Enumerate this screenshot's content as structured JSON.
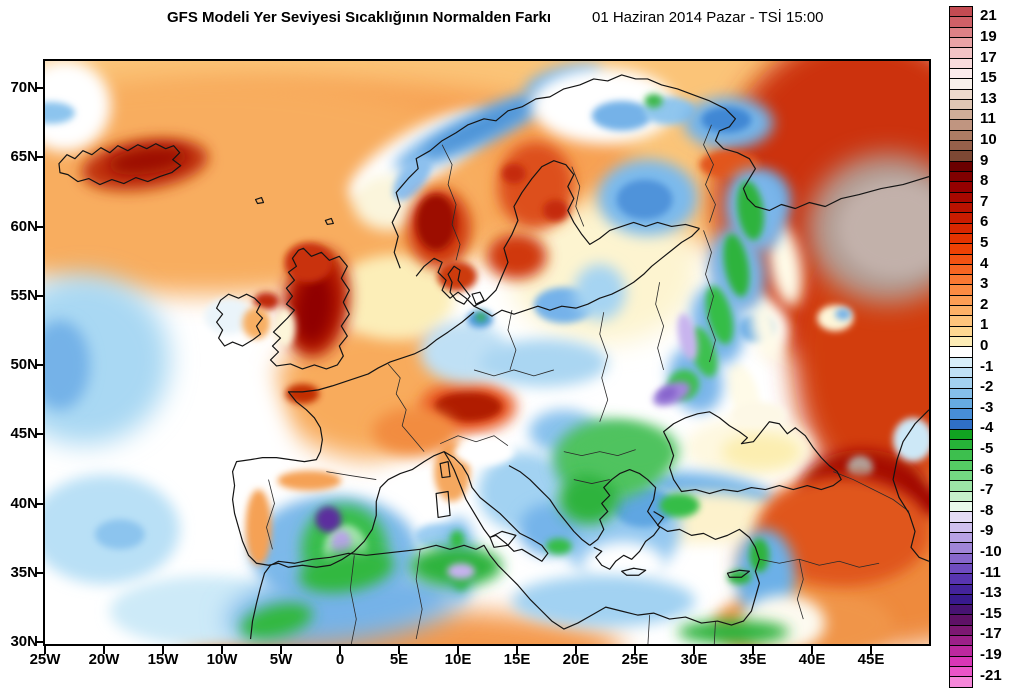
{
  "header": {
    "title": "GFS Modeli Yer Seviyesi Sıcaklığının Normalden Farkı",
    "datetime": "01 Haziran 2014 Pazar - TSİ 15:00"
  },
  "axes": {
    "lat_labels": [
      "70N",
      "65N",
      "60N",
      "55N",
      "50N",
      "45N",
      "40N",
      "35N",
      "30N"
    ],
    "lon_labels": [
      "25W",
      "20W",
      "15W",
      "10W",
      "5W",
      "0",
      "5E",
      "10E",
      "15E",
      "20E",
      "25E",
      "30E",
      "35E",
      "40E",
      "45E"
    ]
  },
  "colorbar": {
    "labels": [
      "21",
      "19",
      "17",
      "15",
      "13",
      "11",
      "10",
      "9",
      "8",
      "7",
      "6",
      "5",
      "4",
      "3",
      "2",
      "1",
      "0",
      "-1",
      "-2",
      "-3",
      "-4",
      "-5",
      "-6",
      "-7",
      "-8",
      "-9",
      "-10",
      "-11",
      "-13",
      "-15",
      "-17",
      "-19",
      "-21"
    ],
    "boundaries": [
      1,
      3,
      5,
      7,
      9,
      11,
      13,
      15,
      17,
      19,
      21,
      23,
      25,
      27,
      29,
      31,
      33,
      35,
      37,
      39,
      41,
      43,
      45,
      47,
      49,
      51,
      53,
      55,
      57,
      59,
      61,
      63,
      65
    ],
    "cells": [
      "#c34b52",
      "#cf6067",
      "#dd8186",
      "#eaa3a6",
      "#f3c3c5",
      "#f9dbdc",
      "#fcecec",
      "#f8f0ea",
      "#eddacd",
      "#dfc6b4",
      "#d0ad98",
      "#c09580",
      "#ad7c64",
      "#96604a",
      "#7d4834",
      "#6b0000",
      "#800000",
      "#950000",
      "#a80800",
      "#ba1200",
      "#ca1c00",
      "#d82700",
      "#e43300",
      "#ee4104",
      "#f35212",
      "#f76522",
      "#fa7832",
      "#fc8b42",
      "#fd9e54",
      "#fdb167",
      "#fec47c",
      "#fed792",
      "#fdecb6",
      "#ffffff",
      "#d8eef9",
      "#bfe0f5",
      "#a3d1f0",
      "#85bfea",
      "#66abe2",
      "#478ed7",
      "#2f6fc6",
      "#11a321",
      "#26b238",
      "#3dbf4e",
      "#55cb64",
      "#74d883",
      "#9ce4a6",
      "#c6f0cb",
      "#e9faec",
      "#e4dcf6",
      "#cfc0ee",
      "#b7a2e4",
      "#a085d8",
      "#8767cc",
      "#6f4cc0",
      "#5835b0",
      "#44249c",
      "#381a8e",
      "#471372",
      "#5e1166",
      "#7c1872",
      "#9c2088",
      "#bc289e",
      "#d836b6",
      "#ea55c8",
      "#f687da"
    ]
  },
  "field": {
    "blobs": [
      [
        420,
        70,
        520,
        130,
        0,
        "#fbc478"
      ],
      [
        290,
        100,
        300,
        80,
        0,
        "#f7a152"
      ],
      [
        160,
        125,
        300,
        110,
        0,
        "#f8ad5e"
      ],
      [
        330,
        330,
        100,
        70,
        0,
        "#f8ab5c"
      ],
      [
        820,
        140,
        150,
        170,
        0,
        "#cc3008"
      ],
      [
        860,
        300,
        110,
        150,
        0,
        "#d23d0e"
      ],
      [
        840,
        500,
        140,
        90,
        0,
        "#ee8a3c"
      ],
      [
        760,
        565,
        90,
        35,
        0,
        "#f0954a"
      ],
      [
        360,
        590,
        220,
        40,
        0,
        "#f49a4e"
      ],
      [
        120,
        380,
        120,
        110,
        0,
        "#ffffff"
      ],
      [
        40,
        300,
        85,
        85,
        0,
        "#a9d8f3"
      ],
      [
        15,
        305,
        30,
        45,
        0,
        "#74b2e8"
      ],
      [
        60,
        470,
        75,
        55,
        0,
        "#b9e0f6"
      ],
      [
        75,
        475,
        25,
        15,
        0,
        "#8cc4ee"
      ],
      [
        160,
        552,
        95,
        35,
        0,
        "#cdeaf8"
      ],
      [
        420,
        452,
        95,
        62,
        0,
        "#ffffff"
      ],
      [
        580,
        330,
        95,
        62,
        0,
        "#ffffff"
      ],
      [
        560,
        212,
        95,
        72,
        0,
        "#fdf4d0"
      ],
      [
        350,
        237,
        60,
        42,
        0,
        "#fceeb8"
      ],
      [
        20,
        45,
        46,
        46,
        0,
        "#ffffff"
      ],
      [
        6,
        52,
        24,
        11,
        0,
        "#8cc4ee"
      ],
      [
        100,
        104,
        64,
        25,
        -8,
        "#c03008"
      ],
      [
        103,
        100,
        40,
        13,
        -8,
        "#9c1000"
      ],
      [
        375,
        95,
        80,
        26,
        -30,
        "#ffffff"
      ],
      [
        345,
        142,
        36,
        28,
        0,
        "#fbf5dc"
      ],
      [
        430,
        70,
        88,
        17,
        -25,
        "#74b2e8"
      ],
      [
        436,
        67,
        62,
        10,
        -25,
        "#4b92d6"
      ],
      [
        520,
        20,
        40,
        14,
        -15,
        "#74b2e8"
      ],
      [
        368,
        118,
        26,
        13,
        -52,
        "#8cc0ee"
      ],
      [
        395,
        168,
        32,
        40,
        0,
        "#cf3a10"
      ],
      [
        392,
        162,
        20,
        28,
        0,
        "#9c0a00"
      ],
      [
        492,
        125,
        38,
        44,
        0,
        "#dd4f1a"
      ],
      [
        470,
        113,
        12,
        10,
        0,
        "#c52c08"
      ],
      [
        512,
        150,
        13,
        11,
        0,
        "#c52c08"
      ],
      [
        473,
        196,
        30,
        23,
        0,
        "#d03810"
      ],
      [
        413,
        216,
        20,
        15,
        0,
        "#cc3a0c"
      ],
      [
        560,
        45,
        72,
        38,
        0,
        "#ffffff"
      ],
      [
        578,
        55,
        30,
        15,
        0,
        "#74b2e8"
      ],
      [
        626,
        50,
        26,
        14,
        0,
        "#90c6ee"
      ],
      [
        610,
        40,
        9,
        7,
        0,
        "#3cb84c"
      ],
      [
        685,
        62,
        45,
        26,
        0,
        "#74b4e8"
      ],
      [
        683,
        59,
        25,
        13,
        0,
        "#4087d4"
      ],
      [
        722,
        138,
        25,
        27,
        0,
        "#6aaae4"
      ],
      [
        604,
        137,
        50,
        38,
        0,
        "#7cbaec"
      ],
      [
        601,
        139,
        28,
        20,
        0,
        "#4f93da"
      ],
      [
        686,
        104,
        30,
        14,
        0,
        "#e2561e"
      ],
      [
        520,
        245,
        30,
        18,
        0,
        "#74b2ea"
      ],
      [
        556,
        232,
        26,
        28,
        0,
        "#a6d4f2"
      ],
      [
        845,
        168,
        80,
        74,
        0,
        "#b4a098"
      ],
      [
        852,
        168,
        56,
        48,
        0,
        "#c2b1aa"
      ],
      [
        792,
        258,
        18,
        13,
        0,
        "#fef6d8"
      ],
      [
        800,
        254,
        8,
        6,
        0,
        "#74b2e8"
      ],
      [
        713,
        268,
        32,
        26,
        0,
        "#ffffff"
      ],
      [
        713,
        268,
        18,
        14,
        0,
        "#5da4e2"
      ],
      [
        742,
        205,
        16,
        42,
        -10,
        "#fffbe8"
      ],
      [
        722,
        268,
        14,
        38,
        -14,
        "#fffbe8"
      ],
      [
        700,
        332,
        14,
        30,
        -18,
        "#fffbe8"
      ],
      [
        712,
        150,
        30,
        42,
        -10,
        "#7ab6ea"
      ],
      [
        694,
        210,
        28,
        42,
        -10,
        "#7ab6ea"
      ],
      [
        674,
        265,
        26,
        40,
        -12,
        "#7ab6ea"
      ],
      [
        652,
        320,
        26,
        34,
        -20,
        "#7ab6ea"
      ],
      [
        707,
        150,
        13,
        30,
        -8,
        "#2eb33c"
      ],
      [
        693,
        205,
        12,
        32,
        -10,
        "#2eb33c"
      ],
      [
        676,
        255,
        12,
        30,
        -14,
        "#35bd47"
      ],
      [
        660,
        292,
        12,
        26,
        -18,
        "#3cc050"
      ],
      [
        640,
        325,
        16,
        15,
        -30,
        "#3cc050"
      ],
      [
        644,
        277,
        9,
        24,
        -12,
        "#c8b4ee"
      ],
      [
        628,
        334,
        20,
        10,
        -24,
        "#a286dc"
      ],
      [
        624,
        334,
        10,
        6,
        -24,
        "#8664cc"
      ],
      [
        705,
        388,
        64,
        30,
        0,
        "#fef8e0"
      ],
      [
        718,
        392,
        40,
        18,
        0,
        "#fceeb0"
      ],
      [
        715,
        355,
        28,
        13,
        0,
        "#fdf8e6"
      ],
      [
        820,
        432,
        64,
        42,
        0,
        "#a50f00"
      ],
      [
        817,
        408,
        13,
        12,
        0,
        "#b2a29a"
      ],
      [
        870,
        380,
        20,
        22,
        0,
        "#cde8f7"
      ],
      [
        660,
        432,
        70,
        18,
        6,
        "#6cb0e8"
      ],
      [
        658,
        458,
        80,
        26,
        0,
        "#fdf2cc"
      ],
      [
        850,
        438,
        60,
        18,
        10,
        "#9c0500"
      ],
      [
        800,
        472,
        88,
        55,
        0,
        "#e0561c"
      ],
      [
        722,
        516,
        30,
        46,
        0,
        "#6cb0e8"
      ],
      [
        740,
        564,
        42,
        28,
        0,
        "#fdfaf0"
      ],
      [
        575,
        468,
        62,
        54,
        0,
        "#94c8f0"
      ],
      [
        600,
        448,
        30,
        20,
        0,
        "#5ea6e2"
      ],
      [
        580,
        508,
        42,
        26,
        0,
        "#ffffff"
      ],
      [
        602,
        546,
        30,
        9,
        0,
        "#a8d6f2"
      ],
      [
        480,
        432,
        46,
        40,
        0,
        "#a2d2f2"
      ],
      [
        505,
        470,
        30,
        26,
        0,
        "#74b4ea"
      ],
      [
        515,
        487,
        13,
        8,
        0,
        "#35bd47"
      ],
      [
        408,
        412,
        18,
        30,
        0,
        "#f5a85e"
      ],
      [
        424,
        347,
        48,
        26,
        0,
        "#e85824"
      ],
      [
        424,
        347,
        34,
        15,
        0,
        "#b01a00"
      ],
      [
        440,
        392,
        30,
        14,
        0,
        "#ffffff"
      ],
      [
        272,
        243,
        33,
        55,
        8,
        "#b81e00"
      ],
      [
        270,
        248,
        19,
        36,
        8,
        "#900300"
      ],
      [
        264,
        202,
        24,
        20,
        0,
        "#c93210"
      ],
      [
        222,
        241,
        13,
        9,
        0,
        "#c02a08"
      ],
      [
        184,
        256,
        24,
        18,
        0,
        "#eaf4fa"
      ],
      [
        212,
        263,
        14,
        16,
        0,
        "#f7ae62"
      ],
      [
        240,
        267,
        11,
        20,
        0,
        "#fdf6da"
      ],
      [
        258,
        334,
        17,
        10,
        0,
        "#c22e06"
      ],
      [
        370,
        372,
        42,
        24,
        0,
        "#f28c40"
      ],
      [
        420,
        292,
        44,
        31,
        0,
        "#bfe0f5"
      ],
      [
        436,
        259,
        13,
        9,
        0,
        "#4f9ade"
      ],
      [
        437,
        257,
        5,
        4,
        0,
        "#2eb33c"
      ],
      [
        500,
        303,
        64,
        24,
        0,
        "#aad6f2"
      ],
      [
        520,
        372,
        35,
        22,
        0,
        "#8ac2ee"
      ],
      [
        558,
        402,
        48,
        34,
        0,
        "#74b4ea"
      ],
      [
        565,
        400,
        55,
        40,
        0,
        "#4fc35e"
      ],
      [
        545,
        440,
        30,
        25,
        0,
        "#2eb33c"
      ],
      [
        590,
        392,
        45,
        28,
        0,
        "#4fc35e"
      ],
      [
        290,
        492,
        84,
        56,
        0,
        "#7db9ea"
      ],
      [
        300,
        490,
        43,
        45,
        0,
        "#38bd4b"
      ],
      [
        301,
        492,
        22,
        27,
        0,
        "#9fe2a8"
      ],
      [
        284,
        460,
        13,
        13,
        0,
        "#5b2f9e"
      ],
      [
        297,
        484,
        10,
        13,
        0,
        "#b9a4e8"
      ],
      [
        214,
        468,
        13,
        38,
        0,
        "#f5a155"
      ],
      [
        265,
        421,
        32,
        10,
        0,
        "#f5a155"
      ],
      [
        396,
        477,
        26,
        13,
        0,
        "#9ccdf2"
      ],
      [
        414,
        500,
        18,
        42,
        0,
        "#85c0ee"
      ],
      [
        413,
        480,
        7,
        9,
        0,
        "#35bd47"
      ],
      [
        416,
        522,
        8,
        10,
        0,
        "#35bd47"
      ],
      [
        300,
        548,
        118,
        36,
        -7,
        "#74b2e8"
      ],
      [
        302,
        512,
        48,
        20,
        -10,
        "#30b840"
      ],
      [
        232,
        562,
        37,
        16,
        -14,
        "#30b840"
      ],
      [
        412,
        507,
        46,
        20,
        0,
        "#2eb33c"
      ],
      [
        417,
        512,
        14,
        8,
        0,
        "#c6b2ee"
      ],
      [
        560,
        542,
        92,
        26,
        0,
        "#a2d2f2"
      ],
      [
        690,
        573,
        56,
        12,
        0,
        "#2eb33c"
      ],
      [
        636,
        446,
        20,
        12,
        0,
        "#35bd47"
      ],
      [
        696,
        518,
        12,
        7,
        0,
        "#2eb33c"
      ],
      [
        716,
        496,
        10,
        17,
        0,
        "#2eb33c"
      ]
    ]
  }
}
